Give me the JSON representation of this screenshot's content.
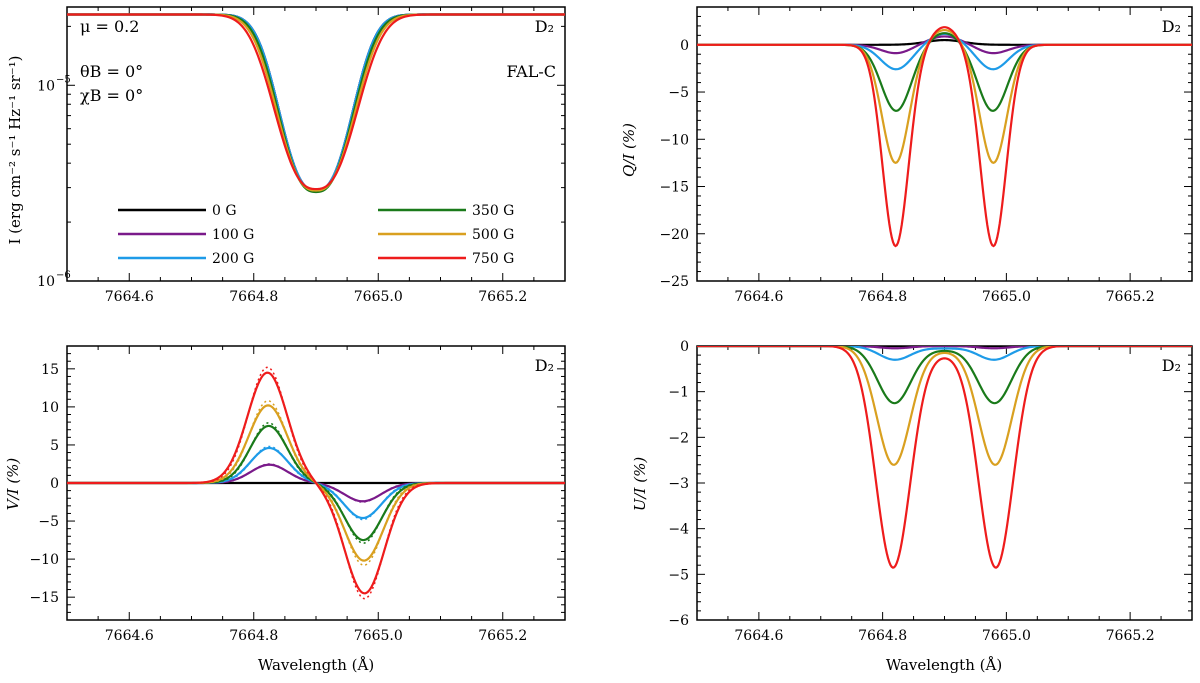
{
  "figure": {
    "xlabel": "Wavelength (Å)",
    "line_label": "D",
    "line_label_sub": "2",
    "colors": {
      "0 G": "#000000",
      "100 G": "#7a1a8a",
      "200 G": "#1e9be8",
      "350 G": "#1a7a1a",
      "500 G": "#d9a020",
      "750 G": "#ee1c1c"
    }
  },
  "chart_data": [
    {
      "id": "intensity",
      "type": "line",
      "title": "",
      "ylabel": "I (erg cm⁻² s⁻¹ Hz⁻¹ sr⁻¹)",
      "yscale": "log",
      "xlim": [
        7664.5,
        7665.3
      ],
      "ylim_exp": [
        -6,
        -4.6
      ],
      "xticks": [
        7664.6,
        7664.8,
        7665.0,
        7665.2
      ],
      "xtick_labels": [
        "7664.6",
        "7664.8",
        "7665.0",
        "7665.2"
      ],
      "yticks_exp": [
        -6,
        -5
      ],
      "ytick_labels": [
        "10",
        "10"
      ],
      "ytick_sups": [
        "−6",
        "−5"
      ],
      "annotations": {
        "mu": "μ  =  0.2",
        "theta": "θB = 0°",
        "chi": "χB = 0°",
        "line": "D₂",
        "atmosphere": "FAL-C"
      },
      "legend": [
        "0 G",
        "100 G",
        "200 G",
        "350 G",
        "500 G",
        "750 G"
      ],
      "series": [
        {
          "name": "0 G",
          "continuum": 2.3e-05,
          "core": 2.9e-06,
          "center": 7664.9,
          "width": 0.072
        },
        {
          "name": "100 G",
          "continuum": 2.3e-05,
          "core": 2.9e-06,
          "center": 7664.9,
          "width": 0.072
        },
        {
          "name": "200 G",
          "continuum": 2.3e-05,
          "core": 2.9e-06,
          "center": 7664.9,
          "width": 0.072
        },
        {
          "name": "350 G",
          "continuum": 2.3e-05,
          "core": 2.85e-06,
          "center": 7664.9,
          "width": 0.074
        },
        {
          "name": "500 G",
          "continuum": 2.3e-05,
          "core": 2.9e-06,
          "center": 7664.9,
          "width": 0.077
        },
        {
          "name": "750 G",
          "continuum": 2.3e-05,
          "core": 2.95e-06,
          "center": 7664.9,
          "width": 0.081
        }
      ]
    },
    {
      "id": "qi",
      "type": "line",
      "ylabel": "Q/I (%)",
      "xlim": [
        7664.5,
        7665.3
      ],
      "ylim": [
        -25,
        4
      ],
      "xticks": [
        7664.6,
        7664.8,
        7665.0,
        7665.2
      ],
      "xtick_labels": [
        "7664.6",
        "7664.8",
        "7665.0",
        "7665.2"
      ],
      "yticks": [
        0,
        -5,
        -10,
        -15,
        -20,
        -25
      ],
      "ytick_labels": [
        "0",
        "−5",
        "−10",
        "−15",
        "−20",
        "−25"
      ],
      "annotations": {
        "line": "D₂"
      },
      "series": [
        {
          "name": "0 G",
          "lobe_depth": 0,
          "lobe_offset": 0.078,
          "lobe_width": 0.025,
          "center_peak": 0.5,
          "center_width": 0.03
        },
        {
          "name": "100 G",
          "lobe_depth": -0.9,
          "lobe_offset": 0.078,
          "lobe_width": 0.025,
          "center_peak": 0.9,
          "center_width": 0.028
        },
        {
          "name": "200 G",
          "lobe_depth": -2.6,
          "lobe_offset": 0.078,
          "lobe_width": 0.025,
          "center_peak": 1.2,
          "center_width": 0.026
        },
        {
          "name": "350 G",
          "lobe_depth": -7.0,
          "lobe_offset": 0.078,
          "lobe_width": 0.024,
          "center_peak": 1.3,
          "center_width": 0.025
        },
        {
          "name": "500 G",
          "lobe_depth": -12.5,
          "lobe_offset": 0.079,
          "lobe_width": 0.022,
          "center_peak": 1.6,
          "center_width": 0.024
        },
        {
          "name": "750 G",
          "lobe_depth": -21.3,
          "lobe_offset": 0.079,
          "lobe_width": 0.021,
          "center_peak": 1.9,
          "center_width": 0.022
        }
      ]
    },
    {
      "id": "vi",
      "type": "line",
      "ylabel": "V/I (%)",
      "xlim": [
        7664.5,
        7665.3
      ],
      "ylim": [
        -18,
        18
      ],
      "xticks": [
        7664.6,
        7664.8,
        7665.0,
        7665.2
      ],
      "xtick_labels": [
        "7664.6",
        "7664.8",
        "7665.0",
        "7665.2"
      ],
      "yticks": [
        15,
        10,
        5,
        0,
        -5,
        -10,
        -15
      ],
      "ytick_labels": [
        "15",
        "10",
        "5",
        "0",
        "−5",
        "−10",
        "−15"
      ],
      "annotations": {
        "line": "D₂"
      },
      "series": [
        {
          "name": "0 G",
          "amplitude": 0.0,
          "dotted_amplitude": 0.0,
          "offset": 0.075,
          "width": 0.03
        },
        {
          "name": "100 G",
          "amplitude": 2.4,
          "dotted_amplitude": 2.5,
          "offset": 0.075,
          "width": 0.03
        },
        {
          "name": "200 G",
          "amplitude": 4.6,
          "dotted_amplitude": 4.8,
          "offset": 0.075,
          "width": 0.03
        },
        {
          "name": "350 G",
          "amplitude": 7.5,
          "dotted_amplitude": 7.9,
          "offset": 0.076,
          "width": 0.03
        },
        {
          "name": "500 G",
          "amplitude": 10.2,
          "dotted_amplitude": 10.8,
          "offset": 0.077,
          "width": 0.031
        },
        {
          "name": "750 G",
          "amplitude": 14.5,
          "dotted_amplitude": 15.2,
          "offset": 0.078,
          "width": 0.032
        }
      ]
    },
    {
      "id": "ui",
      "type": "line",
      "ylabel": "U/I (%)",
      "xlim": [
        7664.5,
        7665.3
      ],
      "ylim": [
        -6,
        0
      ],
      "xticks": [
        7664.6,
        7664.8,
        7665.0,
        7665.2
      ],
      "xtick_labels": [
        "7664.6",
        "7664.8",
        "7665.0",
        "7665.2"
      ],
      "yticks": [
        0,
        -1,
        -2,
        -3,
        -4,
        -5,
        -6
      ],
      "ytick_labels": [
        "0",
        "−1",
        "−2",
        "−3",
        "−4",
        "−5",
        "−6"
      ],
      "annotations": {
        "line": "D₂"
      },
      "series": [
        {
          "name": "0 G",
          "lobe_depth": 0,
          "lobe_offset": 0.08,
          "lobe_width": 0.025,
          "center": 0
        },
        {
          "name": "100 G",
          "lobe_depth": -0.05,
          "lobe_offset": 0.08,
          "lobe_width": 0.025,
          "center": 0
        },
        {
          "name": "200 G",
          "lobe_depth": -0.3,
          "lobe_offset": 0.08,
          "lobe_width": 0.026,
          "center": -0.05
        },
        {
          "name": "350 G",
          "lobe_depth": -1.25,
          "lobe_offset": 0.081,
          "lobe_width": 0.027,
          "center": -0.08
        },
        {
          "name": "500 G",
          "lobe_depth": -2.6,
          "lobe_offset": 0.082,
          "lobe_width": 0.027,
          "center": -0.1
        },
        {
          "name": "750 G",
          "lobe_depth": -4.85,
          "lobe_offset": 0.083,
          "lobe_width": 0.028,
          "center": -0.15
        }
      ]
    }
  ]
}
